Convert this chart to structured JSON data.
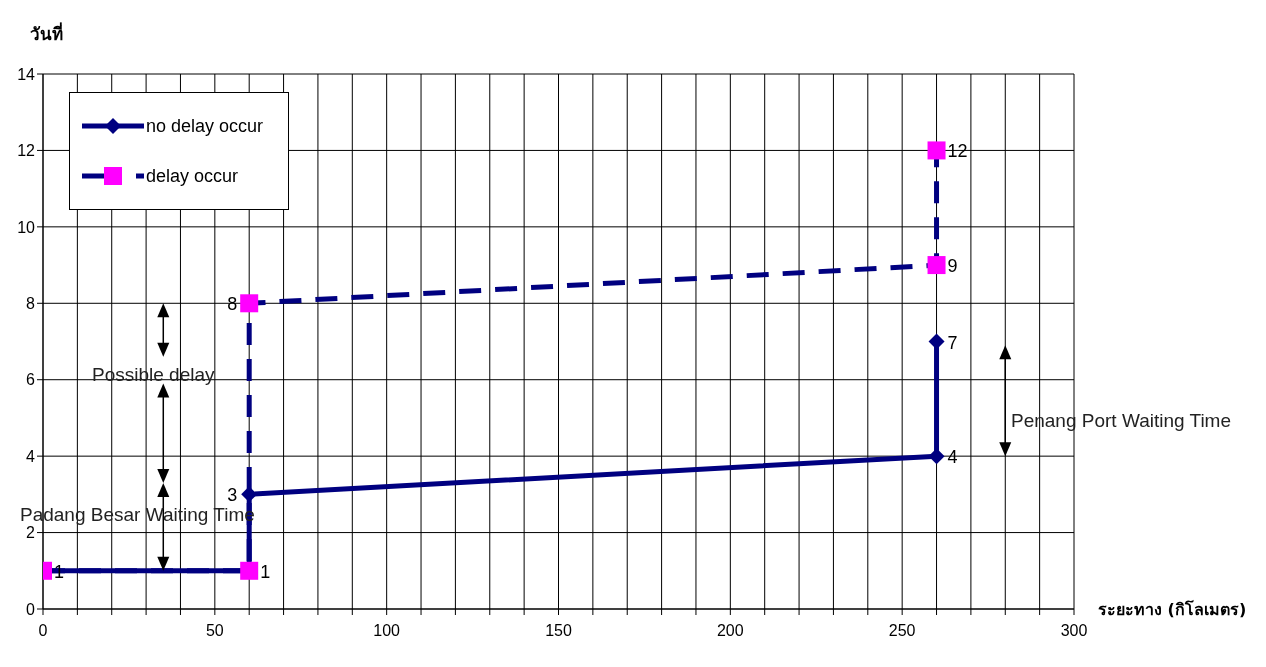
{
  "chart_data": {
    "type": "line",
    "xlabel": "ระยะทาง (กิโลเมตร)",
    "ylabel": "วันที่",
    "xlim": [
      0,
      300
    ],
    "ylim": [
      0,
      14
    ],
    "xticks": [
      0,
      {
        "value": 10,
        "label": null
      },
      {
        "value": 20,
        "label": null
      },
      {
        "value": 30,
        "label": null
      },
      {
        "value": 40,
        "label": null
      },
      50,
      {
        "value": 60,
        "label": null
      },
      {
        "value": 70,
        "label": null
      },
      {
        "value": 80,
        "label": null
      },
      {
        "value": 90,
        "label": null
      },
      100,
      {
        "value": 110,
        "label": null
      },
      {
        "value": 120,
        "label": null
      },
      {
        "value": 130,
        "label": null
      },
      {
        "value": 140,
        "label": null
      },
      150,
      {
        "value": 160,
        "label": null
      },
      {
        "value": 170,
        "label": null
      },
      {
        "value": 180,
        "label": null
      },
      {
        "value": 190,
        "label": null
      },
      200,
      {
        "value": 210,
        "label": null
      },
      {
        "value": 220,
        "label": null
      },
      {
        "value": 230,
        "label": null
      },
      {
        "value": 240,
        "label": null
      },
      250,
      {
        "value": 260,
        "label": null
      },
      {
        "value": 270,
        "label": null
      },
      {
        "value": 280,
        "label": null
      },
      {
        "value": 290,
        "label": null
      },
      300
    ],
    "yticks": [
      0,
      2,
      4,
      6,
      8,
      10,
      12,
      14
    ],
    "grid": true,
    "legend": "top left",
    "series": [
      {
        "name": "no delay occur",
        "color": "#000080",
        "marker": "diamond",
        "line_style": "solid",
        "x": [
          0,
          60,
          60,
          260,
          260
        ],
        "values": [
          1,
          1,
          3,
          4,
          7
        ],
        "value_labels": [
          null,
          null,
          "3",
          "4",
          "7"
        ]
      },
      {
        "name": "delay occur",
        "color": "#000080",
        "colors": [
          "#ff00ff",
          "#ff00ff",
          "#ff00ff",
          "#ff00ff",
          "#ff00ff"
        ],
        "marker": "square",
        "line_style": "dashed",
        "x": [
          0,
          60,
          60,
          260,
          260
        ],
        "values": [
          1,
          1,
          8,
          9,
          12
        ],
        "value_labels": [
          "1",
          "1",
          "8",
          "9",
          "12"
        ]
      }
    ],
    "annotations": [
      "Possible delay",
      "Padang Besar Waiting Time",
      "Penang Port Waiting Time"
    ]
  }
}
